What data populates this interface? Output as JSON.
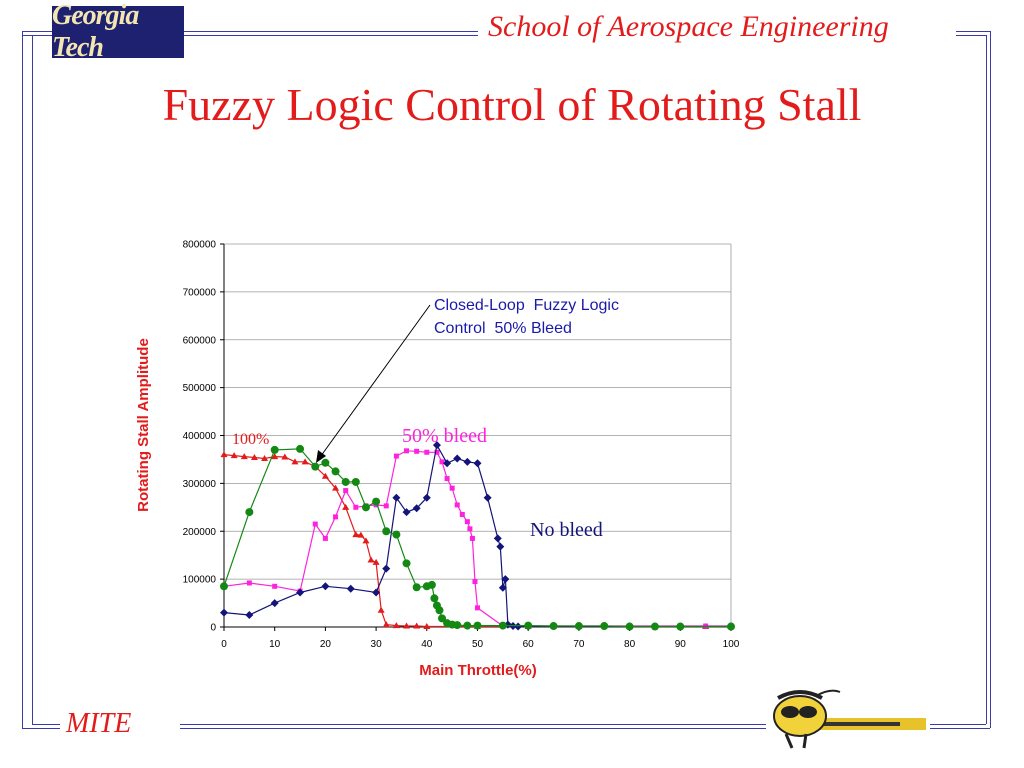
{
  "header": {
    "logo_text": "Georgia Tech",
    "school": "School of Aerospace Engineering"
  },
  "slide": {
    "title": "Fuzzy Logic Control of Rotating Stall"
  },
  "footer": {
    "label": "MITE"
  },
  "colors": {
    "frame": "#3a3aa8",
    "accent": "#e31b1b",
    "logo_bg": "#1e2070"
  },
  "chart_data": {
    "type": "scatter",
    "title": "",
    "xlabel": "Main Throttle(%)",
    "ylabel": "Rotating Stall Amplitude",
    "xlim": [
      0,
      100
    ],
    "ylim": [
      0,
      800000
    ],
    "xticks": [
      0,
      10,
      20,
      30,
      40,
      50,
      60,
      70,
      80,
      90,
      100
    ],
    "yticks": [
      0,
      100000,
      200000,
      300000,
      400000,
      500000,
      600000,
      700000,
      800000
    ],
    "grid": "horizontal",
    "series": [
      {
        "name": "100%",
        "color": "#e31b1b",
        "marker": "triangle",
        "x": [
          0,
          2,
          4,
          6,
          8,
          10,
          12,
          14,
          16,
          18,
          20,
          22,
          24,
          26,
          27,
          28,
          29,
          30,
          31,
          32,
          34,
          36,
          38,
          40,
          50,
          60,
          70,
          80,
          90,
          95,
          100
        ],
        "y": [
          360000,
          358000,
          356000,
          354000,
          352000,
          356000,
          355000,
          345000,
          345000,
          335000,
          315000,
          290000,
          250000,
          193000,
          192000,
          180000,
          140000,
          135000,
          35000,
          5000,
          3000,
          2000,
          2000,
          1000,
          1000,
          1000,
          1000,
          1000,
          1000,
          1000,
          1000
        ]
      },
      {
        "name": "50% bleed",
        "color": "#ff22dd",
        "marker": "square",
        "x": [
          0,
          5,
          10,
          15,
          18,
          20,
          22,
          24,
          26,
          28,
          30,
          32,
          34,
          36,
          38,
          40,
          42,
          43,
          44,
          45,
          46,
          47,
          48,
          48.5,
          49,
          49.5,
          50,
          55,
          60,
          70,
          80,
          90,
          95,
          100
        ],
        "y": [
          85000,
          92000,
          85000,
          75000,
          215000,
          185000,
          230000,
          285000,
          250000,
          253000,
          255000,
          253000,
          357000,
          368000,
          367000,
          365000,
          365000,
          345000,
          310000,
          290000,
          255000,
          235000,
          220000,
          205000,
          185000,
          95000,
          40000,
          2000,
          2000,
          2000,
          2000,
          2000,
          2000,
          2000
        ]
      },
      {
        "name": "No bleed",
        "color": "#14147a",
        "marker": "diamond",
        "x": [
          0,
          5,
          10,
          15,
          20,
          25,
          30,
          32,
          34,
          36,
          38,
          40,
          42,
          44,
          46,
          48,
          50,
          52,
          54,
          54.5,
          55,
          55.5,
          56,
          57,
          58,
          60,
          70,
          80,
          90,
          100
        ],
        "y": [
          30000,
          25000,
          50000,
          72000,
          85000,
          80000,
          72000,
          122000,
          270000,
          240000,
          248000,
          270000,
          380000,
          342000,
          352000,
          345000,
          342000,
          270000,
          185000,
          168000,
          82000,
          100000,
          5000,
          2000,
          1000,
          1000,
          1000,
          1000,
          1000,
          1000
        ]
      },
      {
        "name": "Closed-Loop Fuzzy Logic Control 50% Bleed",
        "color": "#138813",
        "marker": "circle",
        "x": [
          0,
          5,
          10,
          15,
          18,
          20,
          22,
          24,
          26,
          28,
          30,
          32,
          34,
          36,
          38,
          40,
          41,
          41.5,
          42,
          42.5,
          43,
          44,
          45,
          46,
          48,
          50,
          55,
          60,
          65,
          70,
          75,
          80,
          85,
          90,
          100
        ],
        "y": [
          85000,
          240000,
          370000,
          372000,
          335000,
          343000,
          325000,
          303000,
          303000,
          250000,
          262000,
          200000,
          193000,
          133000,
          83000,
          85000,
          88000,
          60000,
          45000,
          35000,
          18000,
          8000,
          5000,
          4000,
          3000,
          3000,
          3000,
          3000,
          2000,
          2000,
          2000,
          1000,
          1000,
          1000,
          1000
        ]
      }
    ],
    "annotations": [
      {
        "text": "100%",
        "color": "#e31b1b"
      },
      {
        "text": "50% bleed",
        "color": "#ff22dd"
      },
      {
        "text": "No bleed",
        "color": "#14147a"
      },
      {
        "text": "Closed-Loop  Fuzzy Logic",
        "color": "#1a1aaa"
      },
      {
        "text": "Control  50% Bleed",
        "color": "#1a1aaa"
      }
    ]
  }
}
